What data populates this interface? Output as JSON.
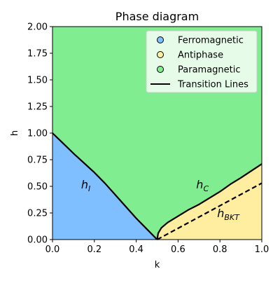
{
  "chart_data": {
    "type": "area",
    "title": "Phase diagram",
    "xlabel": "k",
    "ylabel": "h",
    "xlim": [
      0.0,
      1.0
    ],
    "ylim": [
      0.0,
      2.0
    ],
    "xticks": [
      0.0,
      0.2,
      0.4,
      0.6,
      0.8,
      1.0
    ],
    "xtick_labels": [
      "0.0",
      "0.2",
      "0.4",
      "0.6",
      "0.8",
      "1.0"
    ],
    "yticks": [
      0.0,
      0.25,
      0.5,
      0.75,
      1.0,
      1.25,
      1.5,
      1.75,
      2.0
    ],
    "ytick_labels": [
      "0.00",
      "0.25",
      "0.50",
      "0.75",
      "1.00",
      "1.25",
      "1.50",
      "1.75",
      "2.00"
    ],
    "grid": false,
    "legend_position": "top-right",
    "colors": {
      "ferromagnetic": "#80bfff",
      "antiphase": "#ffee9f",
      "paramagnetic": "#80ee90",
      "transition_line": "#000000"
    },
    "series": [
      {
        "name": "Ferromagnetic",
        "kind": "region",
        "x": [
          0.0,
          0.05,
          0.1,
          0.15,
          0.2,
          0.25,
          0.3,
          0.35,
          0.4,
          0.45,
          0.5
        ],
        "y_upper": [
          1.0,
          0.905,
          0.81,
          0.72,
          0.63,
          0.53,
          0.42,
          0.31,
          0.2,
          0.1,
          0.0
        ]
      },
      {
        "name": "Antiphase",
        "kind": "region",
        "x": [
          0.5,
          0.505,
          0.52,
          0.55,
          0.6,
          0.65,
          0.7,
          0.75,
          0.8,
          0.85,
          0.9,
          0.95,
          1.0
        ],
        "y_upper": [
          0.0,
          0.06,
          0.11,
          0.16,
          0.22,
          0.28,
          0.33,
          0.39,
          0.45,
          0.52,
          0.58,
          0.645,
          0.71
        ]
      },
      {
        "name": "Paramagnetic",
        "kind": "region"
      },
      {
        "name": "Transition Lines",
        "kind": "line",
        "style": "solid",
        "segments": [
          {
            "x": [
              0.0,
              0.05,
              0.1,
              0.15,
              0.2,
              0.25,
              0.3,
              0.35,
              0.4,
              0.45,
              0.5
            ],
            "y": [
              1.0,
              0.905,
              0.81,
              0.72,
              0.63,
              0.53,
              0.42,
              0.31,
              0.2,
              0.1,
              0.0
            ]
          },
          {
            "x": [
              0.5,
              0.505,
              0.52,
              0.55,
              0.6,
              0.65,
              0.7,
              0.75,
              0.8,
              0.85,
              0.9,
              0.95,
              1.0
            ],
            "y": [
              0.0,
              0.06,
              0.11,
              0.16,
              0.22,
              0.28,
              0.33,
              0.39,
              0.45,
              0.52,
              0.58,
              0.645,
              0.71
            ]
          }
        ]
      },
      {
        "kind": "line",
        "style": "dashed",
        "x": [
          0.5,
          1.0
        ],
        "y": [
          0.0,
          0.53
        ]
      }
    ],
    "annotations": [
      {
        "text": "h",
        "subscript": "I",
        "x": 0.15,
        "y": 0.52
      },
      {
        "text": "h",
        "subscript": "C",
        "x": 0.7,
        "y": 0.52
      },
      {
        "text": "h",
        "subscript": "BKT",
        "x": 0.8,
        "y": 0.25
      }
    ],
    "legend": [
      {
        "label": "Ferromagnetic",
        "marker": "circle",
        "color": "#80bfff"
      },
      {
        "label": "Antiphase",
        "marker": "circle",
        "color": "#ffee9f"
      },
      {
        "label": "Paramagnetic",
        "marker": "circle",
        "color": "#80ee90"
      },
      {
        "label": "Transition Lines",
        "marker": "line",
        "color": "#000000"
      }
    ]
  }
}
